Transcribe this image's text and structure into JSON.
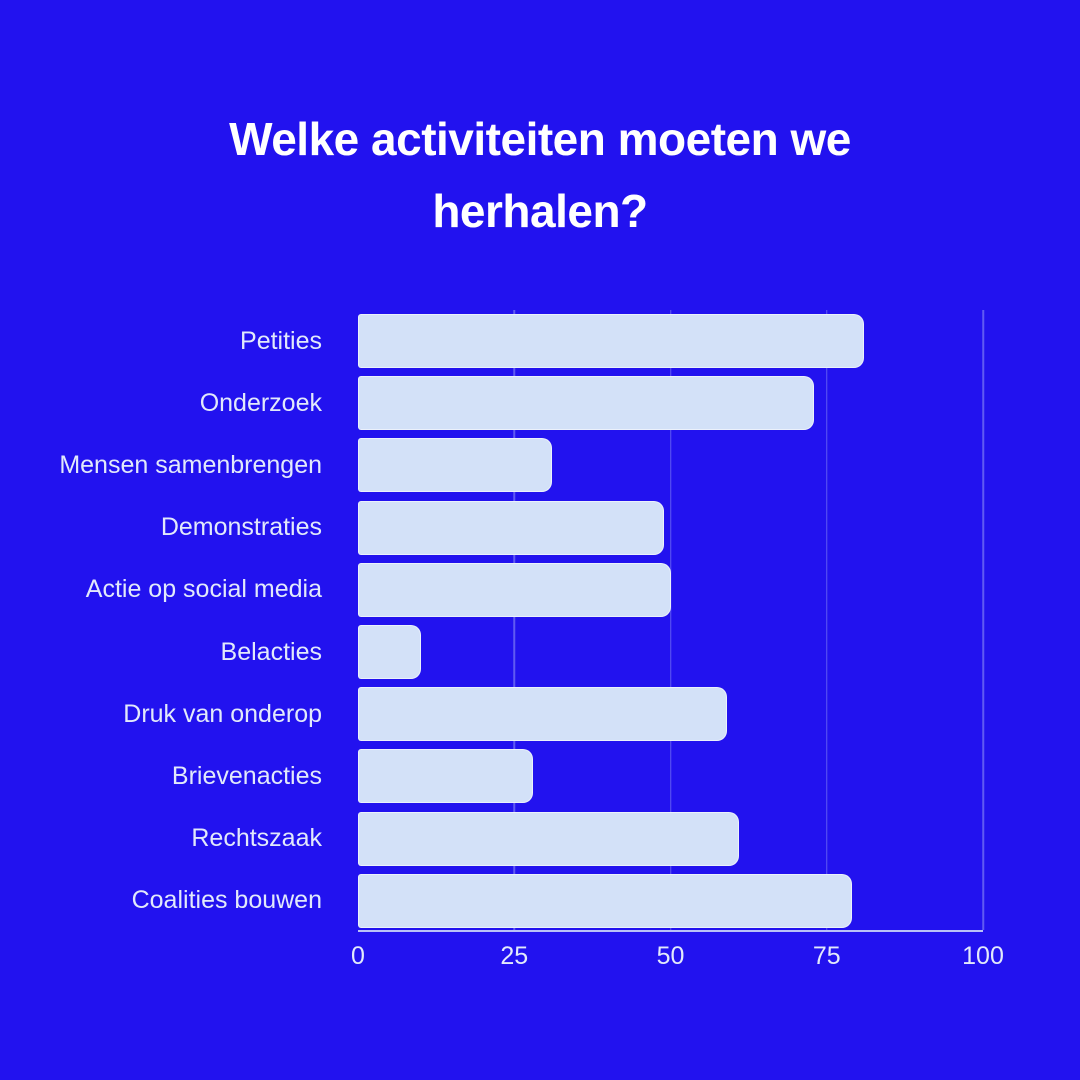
{
  "page": {
    "background_color": "#2212ef",
    "title_color": "#ffffff",
    "muted_text_color": "#e2e9fb"
  },
  "title": {
    "text": "Welke activiteiten moeten we herhalen?",
    "lines": [
      "Welke activiteiten moeten we",
      "herhalen?"
    ]
  },
  "chart_data": {
    "type": "bar",
    "orientation": "horizontal",
    "title": "Welke activiteiten moeten we herhalen?",
    "categories": [
      "Petities",
      "Onderzoek",
      "Mensen samenbrengen",
      "Demonstraties",
      "Actie op social media",
      "Belacties",
      "Druk van onderop",
      "Brievenacties",
      "Rechtszaak",
      "Coalities bouwen"
    ],
    "values": [
      81,
      73,
      31,
      49,
      50,
      10,
      59,
      28,
      61,
      79
    ],
    "xlabel": "",
    "ylabel": "",
    "xlim": [
      0,
      100
    ],
    "x_ticks": [
      0,
      25,
      50,
      75,
      100
    ],
    "grid": "vertical gridlines at x ticks, baseline under bars",
    "legend": "none",
    "bar_fill": "#d3e1f8",
    "gridline_color": "#d3e1f8",
    "axis_line_color": "#d3e1f8"
  }
}
